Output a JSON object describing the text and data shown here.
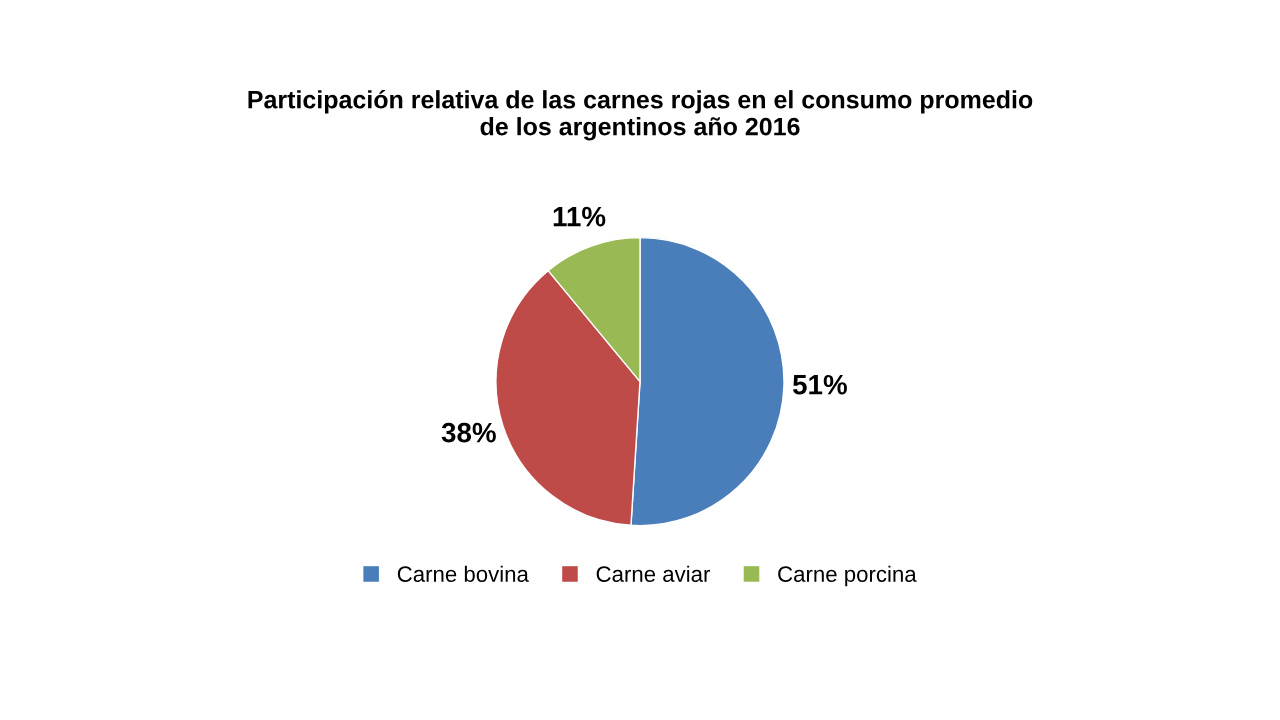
{
  "chart_data": {
    "type": "pie",
    "title": "Participación relativa de las carnes rojas en el consumo promedio\nde los argentinos año 2016",
    "categories": [
      "Carne bovina",
      "Carne aviar",
      "Carne porcina"
    ],
    "values": [
      51,
      38,
      11
    ],
    "colors": [
      "#4a7ebb",
      "#be4b48",
      "#98b954"
    ],
    "value_labels": [
      "51%",
      "38%",
      "11%"
    ],
    "legend": "bottom"
  }
}
